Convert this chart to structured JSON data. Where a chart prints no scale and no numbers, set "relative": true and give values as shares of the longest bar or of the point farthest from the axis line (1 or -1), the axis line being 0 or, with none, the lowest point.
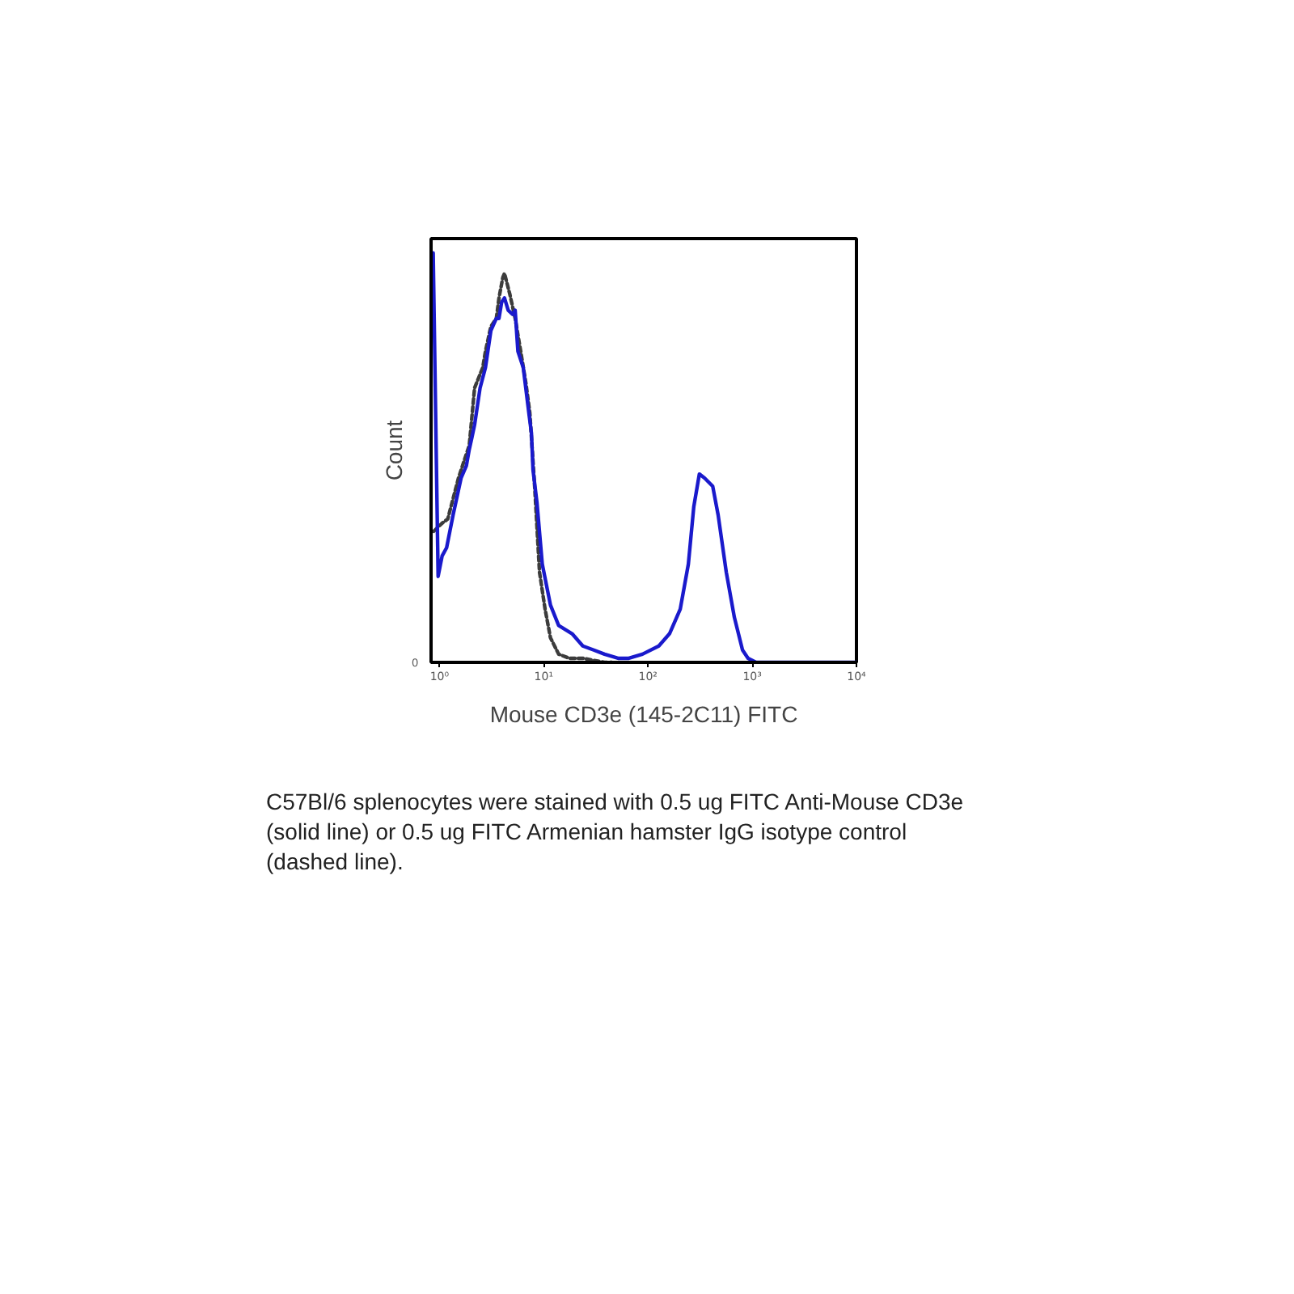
{
  "chart_data": {
    "type": "line",
    "xlabel": "Mouse CD3e (145-2C11) FITC",
    "ylabel": "Count",
    "log": "x",
    "relative": true,
    "grid": false,
    "xlim": [
      0.83,
      10000
    ],
    "xticks": [
      {
        "value": 1,
        "label": "10⁰"
      },
      {
        "value": 10,
        "label": "10¹"
      },
      {
        "value": 100,
        "label": "10²"
      },
      {
        "value": 1000,
        "label": "10³"
      },
      {
        "value": 10000,
        "label": "10⁴"
      }
    ],
    "series": [
      {
        "color": "#3c3c3c",
        "line_style": "dashed",
        "x": [
          0.88,
          1.06,
          1.2,
          1.35,
          1.52,
          1.71,
          1.93,
          2.17,
          2.6,
          2.76,
          3.11,
          3.51,
          3.72,
          4.05,
          4.2,
          4.72,
          5.32,
          6.01,
          6.76,
          7.35,
          8.18,
          9.11,
          10.3,
          11.6,
          13.9,
          17.6,
          23.7,
          38.3,
          45
        ],
        "values": [
          0.32,
          0.34,
          0.35,
          0.4,
          0.45,
          0.49,
          0.53,
          0.67,
          0.72,
          0.76,
          0.82,
          0.84,
          0.89,
          0.94,
          0.95,
          0.9,
          0.84,
          0.76,
          0.68,
          0.61,
          0.43,
          0.22,
          0.13,
          0.06,
          0.02,
          0.01,
          0.01,
          0,
          0
        ]
      },
      {
        "color": "#1a1acc",
        "line_style": "solid",
        "x": [
          0.87,
          0.97,
          1.06,
          1.17,
          1.35,
          1.61,
          1.81,
          1.93,
          2.05,
          2.17,
          2.45,
          2.76,
          3.11,
          3.51,
          3.72,
          3.95,
          4.2,
          4.56,
          5.02,
          5.32,
          5.65,
          6.36,
          7.19,
          7.62,
          7.89,
          8.61,
          9.68,
          11.6,
          13.9,
          18.7,
          23.7,
          30.2,
          38.3,
          51.7,
          65.5,
          88.5,
          127,
          161,
          204,
          244,
          275,
          311,
          350,
          418,
          471,
          564,
          674,
          807,
          912,
          1090,
          10000
        ],
        "values": [
          1.0,
          0.21,
          0.26,
          0.28,
          0.36,
          0.45,
          0.48,
          0.52,
          0.55,
          0.58,
          0.67,
          0.72,
          0.81,
          0.84,
          0.84,
          0.88,
          0.89,
          0.86,
          0.85,
          0.86,
          0.76,
          0.72,
          0.61,
          0.56,
          0.47,
          0.39,
          0.24,
          0.14,
          0.09,
          0.07,
          0.04,
          0.03,
          0.02,
          0.01,
          0.01,
          0.02,
          0.04,
          0.07,
          0.13,
          0.24,
          0.38,
          0.46,
          0.45,
          0.43,
          0.36,
          0.22,
          0.11,
          0.03,
          0.01,
          0,
          0
        ]
      }
    ],
    "annotations": [
      "0",
      "C57Bl/6 splenocytes were stained with 0.5 ug FITC Anti-Mouse CD3e (solid line) or 0.5 ug FITC Armenian hamster IgG isotype control (dashed line)."
    ]
  }
}
